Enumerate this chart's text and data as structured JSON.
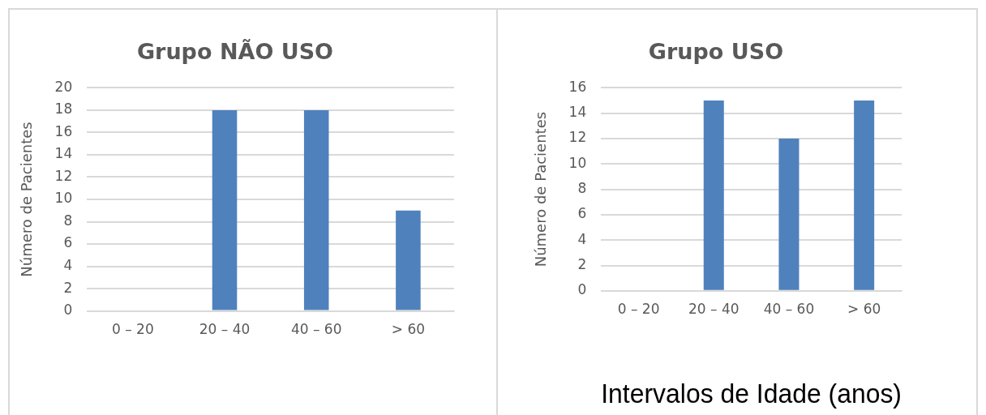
{
  "chart_data": [
    {
      "type": "bar",
      "title": "Grupo NÃO USO",
      "ylabel": "Número de Pacientes",
      "categories": [
        "0 – 20",
        "20 – 40",
        "40 – 60",
        "> 60"
      ],
      "values": [
        0,
        18,
        18,
        9
      ],
      "color": "#4f81bd",
      "ylim": [
        0,
        20
      ],
      "yticks": [
        0,
        2,
        4,
        6,
        8,
        10,
        12,
        14,
        16,
        18,
        20
      ],
      "grid": "y"
    },
    {
      "type": "bar",
      "title": "Grupo USO",
      "ylabel": "Número de Pacientes",
      "xlabel": "Intervalos de Idade (anos)",
      "categories": [
        "0 – 20",
        "20 – 40",
        "40 – 60",
        "> 60"
      ],
      "values": [
        0,
        15,
        12,
        15
      ],
      "color": "#4f81bd",
      "ylim": [
        0,
        16
      ],
      "yticks": [
        0,
        2,
        4,
        6,
        8,
        10,
        12,
        14,
        16
      ],
      "grid": "y"
    }
  ]
}
